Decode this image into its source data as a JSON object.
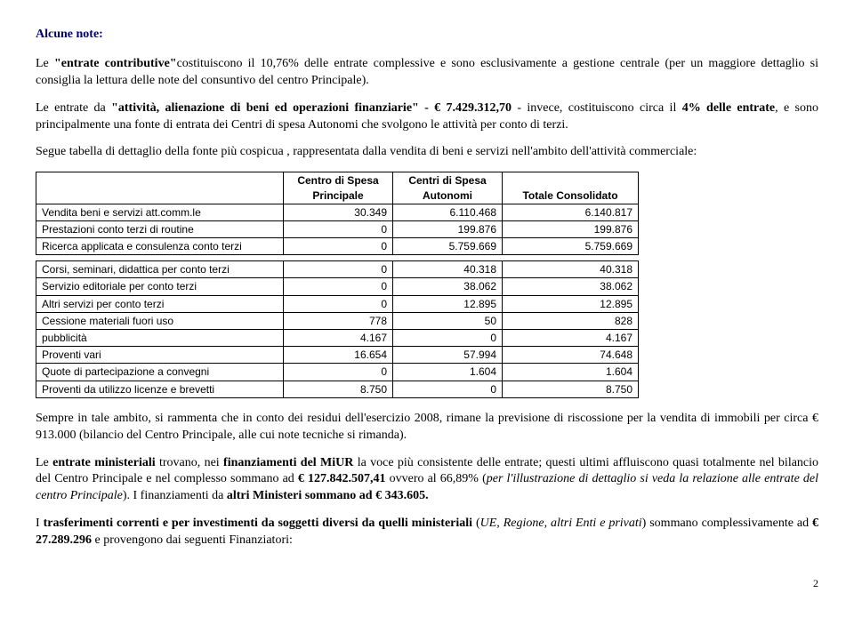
{
  "heading": "Alcune note:",
  "para1": {
    "t1": "Le ",
    "t2": "\"entrate contributive\"",
    "t3": "costituiscono il 10,76% delle entrate complessive e sono esclusivamente a gestione centrale (per un maggiore dettaglio si consiglia la lettura delle note del consuntivo del centro Principale)."
  },
  "para2": {
    "t1": "Le entrate da ",
    "t2": "\"attività, alienazione di beni ed operazioni finanziarie\" - € 7.429.312,70",
    "t3": " - invece, costituiscono circa il ",
    "t4": "4% delle entrate",
    "t5": ", e sono principalmente una fonte di entrata dei Centri di spesa Autonomi che svolgono le attività per conto di terzi."
  },
  "para3": "Segue tabella di dettaglio della fonte più cospicua , rappresentata dalla vendita di beni e servizi nell'ambito dell'attività commerciale:",
  "table": {
    "headers": [
      "",
      "Centro di Spesa Principale",
      "Centri di Spesa Autonomi",
      "Totale Consolidato"
    ],
    "rows_top": [
      [
        "Vendita beni e servizi att.comm.le",
        "30.349",
        "6.110.468",
        "6.140.817"
      ],
      [
        "Prestazioni conto terzi di routine",
        "0",
        "199.876",
        "199.876"
      ],
      [
        "Ricerca applicata e consulenza conto terzi",
        "0",
        "5.759.669",
        "5.759.669"
      ]
    ],
    "rows_bottom": [
      [
        "Corsi, seminari, didattica per conto terzi",
        "0",
        "40.318",
        "40.318"
      ],
      [
        "Servizio editoriale per conto terzi",
        "0",
        "38.062",
        "38.062"
      ],
      [
        "Altri servizi per conto terzi",
        "0",
        "12.895",
        "12.895"
      ],
      [
        "Cessione materiali fuori uso",
        "778",
        "50",
        "828"
      ],
      [
        "pubblicità",
        "4.167",
        "0",
        "4.167"
      ],
      [
        "Proventi vari",
        "16.654",
        "57.994",
        "74.648"
      ],
      [
        "Quote di partecipazione a convegni",
        "0",
        "1.604",
        "1.604"
      ],
      [
        "Proventi da utilizzo licenze e brevetti",
        "8.750",
        "0",
        "8.750"
      ]
    ]
  },
  "para4": "Sempre in tale ambito, si rammenta che in  conto dei residui dell'esercizio 2008,  rimane la previsione di riscossione per la vendita di immobili per circa € 913.000 (bilancio del Centro Principale, alle cui note tecniche si rimanda).",
  "para5": {
    "t1": "Le ",
    "t2": "entrate ministeriali",
    "t3": " trovano, nei ",
    "t4": "finanziamenti del MiUR",
    "t5": "  la voce più consistente delle entrate; questi ultimi affluiscono quasi totalmente nel bilancio del Centro Principale e nel complesso sommano ad ",
    "t6": "€ 127.842.507,41",
    "t7": "  ovvero al 66,89% (",
    "t8": "per l'illustrazione di dettaglio si veda la relazione alle entrate del centro Principale",
    "t9": "). I finanziamenti da ",
    "t10": "altri Ministeri sommano ad € 343.605.",
    "t11": ""
  },
  "para6": {
    "t1": "I ",
    "t2": "trasferimenti correnti e per investimenti da soggetti diversi da quelli ministeriali",
    "t3": " (",
    "t4": "UE, Regione, altri Enti e privati",
    "t5": ") sommano complessivamente ad ",
    "t6": "€ 27.289.296",
    "t7": " e provengono dai seguenti Finanziatori:"
  },
  "page_number": "2"
}
